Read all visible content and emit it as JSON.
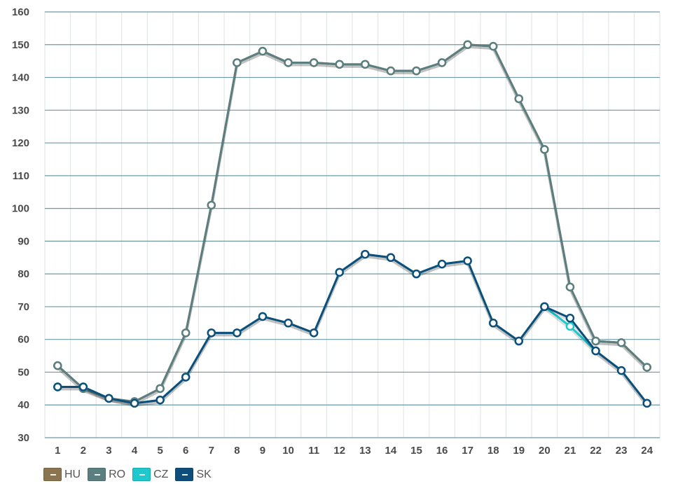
{
  "chart_data": {
    "type": "line",
    "x": [
      "1",
      "2",
      "3",
      "4",
      "5",
      "6",
      "7",
      "8",
      "9",
      "10",
      "11",
      "12",
      "13",
      "14",
      "15",
      "16",
      "17",
      "18",
      "19",
      "20",
      "21",
      "22",
      "23",
      "24"
    ],
    "ylim": [
      30,
      160
    ],
    "yticks": [
      30,
      40,
      50,
      60,
      70,
      80,
      90,
      100,
      110,
      120,
      130,
      140,
      150,
      160
    ],
    "grid": true,
    "legend_placement": "bottom-left",
    "series": [
      {
        "name": "HU",
        "color": "#8a7550",
        "values": [
          52,
          45,
          42,
          41,
          45,
          62,
          101,
          144.5,
          148,
          144.5,
          144.5,
          144,
          144,
          142,
          142,
          144.5,
          150,
          149.5,
          133.5,
          118,
          76,
          59.5,
          59,
          51.5
        ]
      },
      {
        "name": "RO",
        "color": "#5b7f80",
        "values": [
          52,
          45,
          42,
          41,
          45,
          62,
          101,
          144.5,
          148,
          144.5,
          144.5,
          144,
          144,
          142,
          142,
          144.5,
          150,
          149.5,
          133.5,
          118,
          76,
          59.5,
          59,
          51.5
        ]
      },
      {
        "name": "CZ",
        "color": "#1ec8cc",
        "values": [
          45.5,
          45.5,
          42,
          40.5,
          41.5,
          48.5,
          62,
          62,
          67,
          65,
          62,
          80.5,
          86,
          85,
          80,
          83,
          84,
          65,
          59.5,
          70,
          64,
          56.5,
          50.5,
          40.5
        ]
      },
      {
        "name": "SK",
        "color": "#0d4f7a",
        "values": [
          45.5,
          45.5,
          42,
          40.5,
          41.5,
          48.5,
          62,
          62,
          67,
          65,
          62,
          80.5,
          86,
          85,
          80,
          83,
          84,
          65,
          59.5,
          70,
          66.5,
          56.5,
          50.5,
          40.5
        ]
      }
    ]
  }
}
